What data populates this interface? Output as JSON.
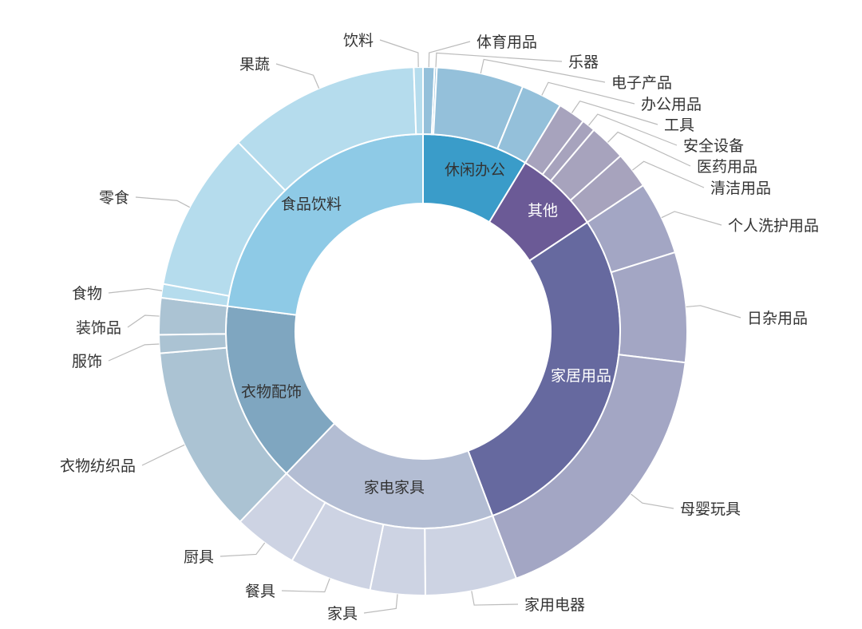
{
  "chart_data": {
    "type": "sunburst",
    "title": "",
    "unit_note": "",
    "groups": [
      {
        "name": "休闲办公",
        "color": "#3a9cc9",
        "child_color": "#94c0da",
        "label_color": "#333333",
        "children": [
          {
            "name": "体育用品",
            "value": 2.5
          },
          {
            "name": "乐器",
            "value": 0.5
          },
          {
            "name": "电子产品",
            "value": 19
          },
          {
            "name": "办公用品",
            "value": 9
          }
        ]
      },
      {
        "name": "其他",
        "color": "#6b5a96",
        "child_color": "#a7a3bd",
        "label_color": "#ffffff",
        "children": [
          {
            "name": "工具",
            "value": 6
          },
          {
            "name": "安全设备",
            "value": 3
          },
          {
            "name": "医药用品",
            "value": 8
          },
          {
            "name": "清洁用品",
            "value": 8
          }
        ]
      },
      {
        "name": "家居用品",
        "color": "#66699f",
        "child_color": "#a3a6c4",
        "label_color": "#ffffff",
        "children": [
          {
            "name": "个人洗护用品",
            "value": 16
          },
          {
            "name": "日杂用品",
            "value": 24
          },
          {
            "name": "母婴玩具",
            "value": 62
          }
        ]
      },
      {
        "name": "家电家具",
        "color": "#b3bdd3",
        "child_color": "#cdd3e3",
        "label_color": "#333333",
        "children": [
          {
            "name": "家用电器",
            "value": 20
          },
          {
            "name": "家具",
            "value": 12
          },
          {
            "name": "餐具",
            "value": 18
          },
          {
            "name": "厨具",
            "value": 14
          }
        ]
      },
      {
        "name": "衣物配饰",
        "color": "#7fa6c0",
        "child_color": "#abc3d3",
        "label_color": "#333333",
        "children": [
          {
            "name": "衣物纺织品",
            "value": 41
          },
          {
            "name": "服饰",
            "value": 4
          },
          {
            "name": "装饰品",
            "value": 8
          },
          {
            "name": "食物",
            "value": 0
          }
        ]
      },
      {
        "name": "食品饮料",
        "color": "#8ecae6",
        "child_color": "#b5dced",
        "label_color": "#333333",
        "children": [
          {
            "name": "食物",
            "value": 3
          },
          {
            "name": "零食",
            "value": 35
          },
          {
            "name": "果蔬",
            "value": 42
          },
          {
            "name": "饮料",
            "value": 2
          }
        ]
      }
    ]
  }
}
